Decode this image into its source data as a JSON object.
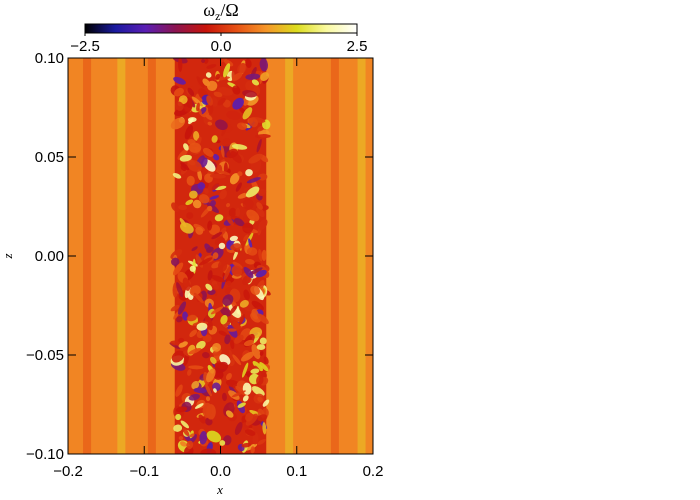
{
  "chart_data": {
    "type": "heatmap",
    "title": "",
    "xlabel": "x",
    "ylabel": "z",
    "xlim": [
      -0.2,
      0.2
    ],
    "ylim": [
      -0.1,
      0.1
    ],
    "x_ticks": [
      -0.2,
      -0.1,
      0.0,
      0.1,
      0.2
    ],
    "x_tick_labels": [
      "−0.2",
      "−0.1",
      "0.0",
      "0.1",
      "0.2"
    ],
    "y_ticks": [
      -0.1,
      -0.05,
      0.0,
      0.05,
      0.1
    ],
    "y_tick_labels": [
      "−0.10",
      "−0.05",
      "0.00",
      "0.05",
      "0.10"
    ],
    "colorbar": {
      "label_base": "ω",
      "label_sub": "z",
      "label_tail": "/Ω",
      "range": [
        -2.5,
        2.5
      ],
      "ticks": [
        -2.5,
        0.0,
        2.5
      ],
      "tick_labels": [
        "−2.5",
        "0.0",
        "2.5"
      ],
      "colormap_stops": [
        "#000000",
        "#1a1aa0",
        "#5a1eb4",
        "#8c1450",
        "#c8140a",
        "#e65014",
        "#f59628",
        "#dcdc1e",
        "#fafaa0",
        "#ffffff"
      ]
    },
    "field": {
      "background_value": 0.7,
      "turbulent_band_x": [
        -0.06,
        0.06
      ],
      "turbulent_value_range": [
        -1.5,
        2.2
      ],
      "stripe_positions_x": [
        -0.175,
        -0.13,
        -0.09,
        0.09,
        0.15,
        0.185
      ],
      "description_values": "axially uniform stripes outside the band, small-scale vortical structures inside"
    }
  }
}
